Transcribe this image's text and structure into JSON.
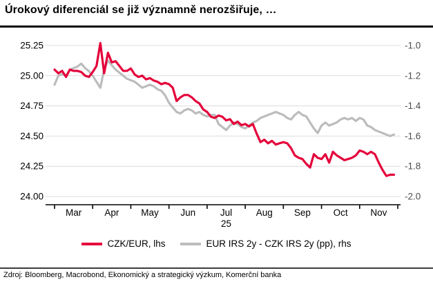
{
  "header": {
    "title": "Úrokový diferenciál se již významně nerozšiřuje, …"
  },
  "footer": {
    "source": "Zdroj: Bloomberg, Macrobond, Ekonomický a strategický výzkum, Komerční banka"
  },
  "chart_data": {
    "type": "line",
    "title": "Úrokový diferenciál se již významně nerozšiřuje, …",
    "grid_color": "#DCDCDC",
    "left_label_color": "#000000",
    "right_label_color": "#4D4D4D",
    "axis_color": "#000000",
    "x_axis": {
      "tick_count": 10,
      "month_labels": [
        "Mar",
        "Apr",
        "May",
        "Jun",
        "Jul",
        "Aug",
        "Sep",
        "Oct",
        "Nov"
      ],
      "year_label": "25",
      "xlim": [
        0,
        9
      ]
    },
    "left_axis": {
      "side": "left",
      "ticks": [
        "25.25",
        "25.00",
        "24.75",
        "24.50",
        "24.25",
        "24.00"
      ]
    },
    "right_axis": {
      "side": "right",
      "ticks": [
        "-1.0",
        "-1.2",
        "-1.4",
        "-1.6",
        "-1.8",
        "-2.0"
      ]
    },
    "series": [
      {
        "name": "CZK/EUR, lhs",
        "axis": "left",
        "color": "#E4003A",
        "x_start": 0,
        "x_step": 0.1,
        "values": [
          25.05,
          25.02,
          25.04,
          24.99,
          25.05,
          25.04,
          25.04,
          25.03,
          25.0,
          24.99,
          25.03,
          25.08,
          25.27,
          25.02,
          25.19,
          25.11,
          25.12,
          25.08,
          25.04,
          25.04,
          25.06,
          25.01,
          24.99,
          25.0,
          24.97,
          24.98,
          24.96,
          24.95,
          24.93,
          24.94,
          24.93,
          24.9,
          24.79,
          24.82,
          24.84,
          24.84,
          24.82,
          24.79,
          24.77,
          24.72,
          24.7,
          24.66,
          24.65,
          24.67,
          24.66,
          24.63,
          24.64,
          24.6,
          24.62,
          24.59,
          24.6,
          24.58,
          24.6,
          24.52,
          24.45,
          24.47,
          24.44,
          24.46,
          24.43,
          24.44,
          24.45,
          24.44,
          24.4,
          24.34,
          24.32,
          24.31,
          24.27,
          24.24,
          24.35,
          24.32,
          24.31,
          24.35,
          24.28,
          24.37,
          24.34,
          24.32,
          24.3,
          24.31,
          24.32,
          24.34,
          24.38,
          24.37,
          24.35,
          24.37,
          24.35,
          24.28,
          24.22,
          24.17,
          24.18,
          24.18
        ]
      },
      {
        "name": "EUR IRS 2y - CZK IRS 2y (pp), rhs",
        "axis": "right",
        "color": "#BCBCBC",
        "x_start": 0,
        "x_step": 0.1,
        "values": [
          -1.26,
          -1.2,
          -1.19,
          -1.2,
          -1.16,
          -1.15,
          -1.14,
          -1.12,
          -1.15,
          -1.17,
          -1.2,
          -1.24,
          -1.28,
          -1.16,
          -1.1,
          -1.13,
          -1.16,
          -1.18,
          -1.2,
          -1.22,
          -1.23,
          -1.24,
          -1.26,
          -1.28,
          -1.27,
          -1.26,
          -1.27,
          -1.29,
          -1.3,
          -1.33,
          -1.38,
          -1.41,
          -1.44,
          -1.45,
          -1.43,
          -1.42,
          -1.43,
          -1.45,
          -1.44,
          -1.46,
          -1.47,
          -1.46,
          -1.46,
          -1.52,
          -1.54,
          -1.56,
          -1.53,
          -1.51,
          -1.52,
          -1.54,
          -1.55,
          -1.53,
          -1.51,
          -1.5,
          -1.48,
          -1.47,
          -1.46,
          -1.45,
          -1.44,
          -1.45,
          -1.46,
          -1.48,
          -1.49,
          -1.46,
          -1.44,
          -1.46,
          -1.47,
          -1.51,
          -1.55,
          -1.58,
          -1.53,
          -1.51,
          -1.53,
          -1.52,
          -1.51,
          -1.49,
          -1.48,
          -1.49,
          -1.48,
          -1.5,
          -1.48,
          -1.49,
          -1.53,
          -1.54,
          -1.56,
          -1.57,
          -1.58,
          -1.59,
          -1.6,
          -1.59
        ]
      }
    ]
  }
}
